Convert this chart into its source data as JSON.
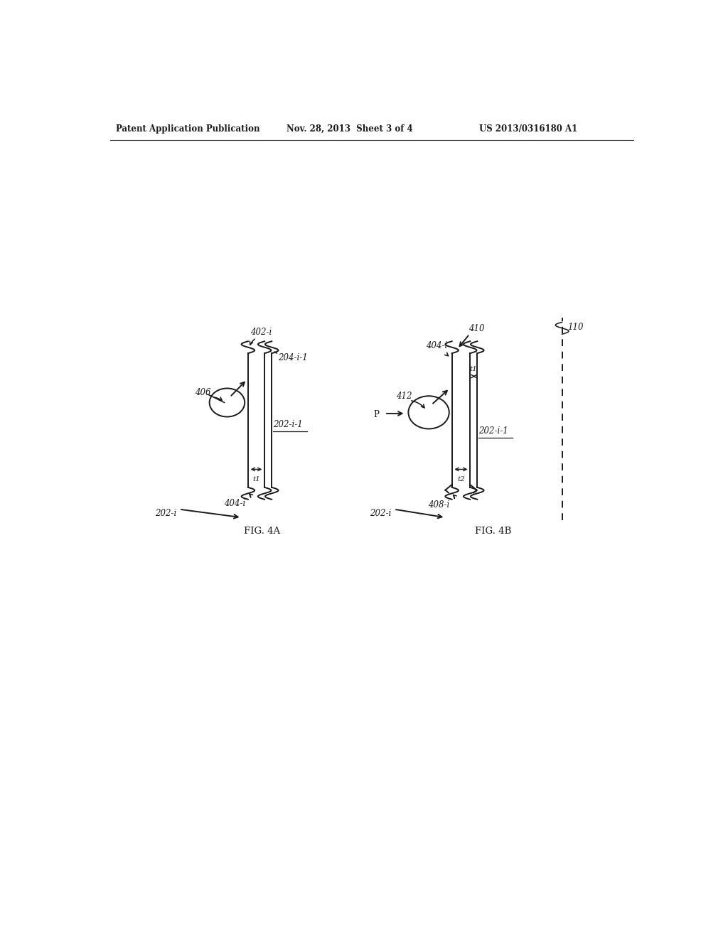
{
  "bg_color": "#ffffff",
  "header_left": "Patent Application Publication",
  "header_mid": "Nov. 28, 2013  Sheet 3 of 4",
  "header_right": "US 2013/0316180 A1",
  "fig4a_label": "FIG. 4A",
  "fig4b_label": "FIG. 4B",
  "label_202i_left": "202-i",
  "label_202i_right": "202-i",
  "label_202i1_left": "202-i-1",
  "label_202i1_right": "202-i-1",
  "label_204i1": "204-i-1",
  "label_402i": "402-i",
  "label_404i": "404-i",
  "label_404i_right": "404-i",
  "label_406": "406",
  "label_408i": "408-i",
  "label_410": "410",
  "label_412": "412",
  "label_t1_left": "t1",
  "label_t1_right": "t1",
  "label_t2": "t2",
  "label_P": "P",
  "label_110": "110"
}
